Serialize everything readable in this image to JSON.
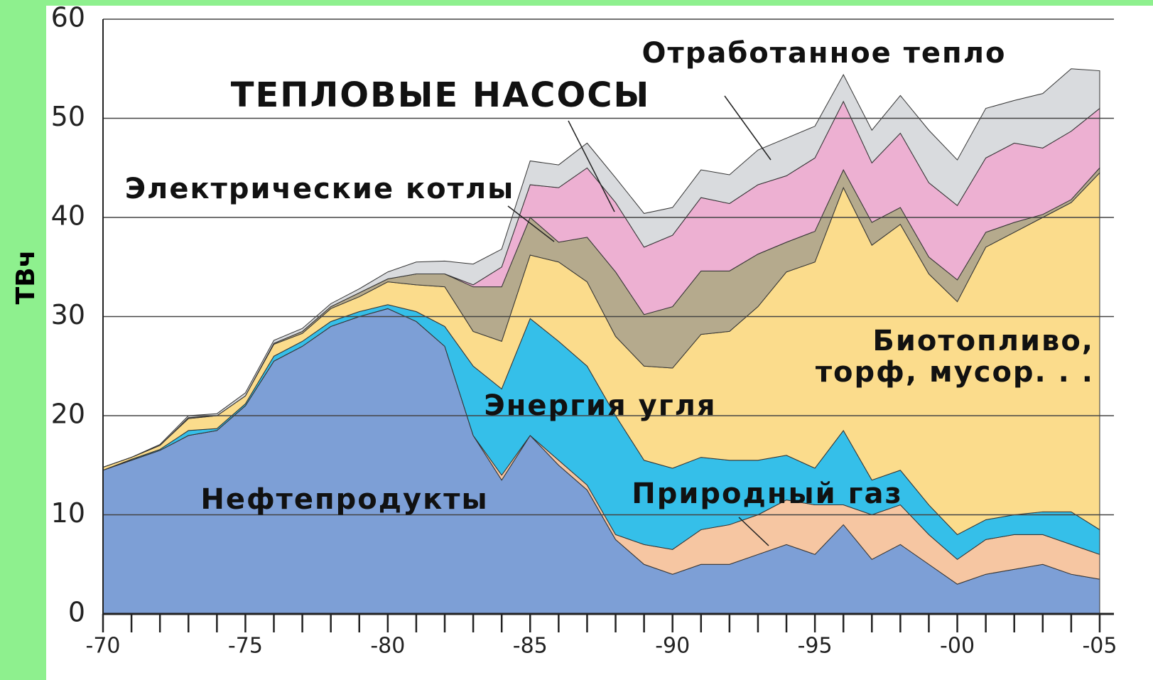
{
  "chart_data": {
    "type": "stacked_area",
    "y_label": "ТВч",
    "x": [
      1970,
      1971,
      1972,
      1973,
      1974,
      1975,
      1976,
      1977,
      1978,
      1979,
      1980,
      1981,
      1982,
      1983,
      1984,
      1985,
      1986,
      1987,
      1988,
      1989,
      1990,
      1991,
      1992,
      1993,
      1994,
      1995,
      1996,
      1997,
      1998,
      1999,
      2000,
      2001,
      2002,
      2003,
      2004,
      2005
    ],
    "xlim": [
      1970,
      2005.5
    ],
    "xticks": [
      {
        "value": 1970,
        "label": "-70"
      },
      {
        "value": 1975,
        "label": "-75"
      },
      {
        "value": 1980,
        "label": "-80"
      },
      {
        "value": 1985,
        "label": "-85"
      },
      {
        "value": 1990,
        "label": "-90"
      },
      {
        "value": 1995,
        "label": "-95"
      },
      {
        "value": 2000,
        "label": "-00"
      },
      {
        "value": 2005,
        "label": "-05"
      }
    ],
    "ylim": [
      0,
      60
    ],
    "yticks": [
      0,
      10,
      20,
      30,
      40,
      50,
      60
    ],
    "grid": true,
    "series": [
      {
        "name": "Нефтепродукты",
        "color": "#7d9fd6",
        "values": [
          14.5,
          15.5,
          16.5,
          18,
          18.5,
          21,
          25.5,
          27,
          29,
          30,
          30.8,
          29.5,
          27,
          18,
          13.5,
          18,
          15,
          12.5,
          7.5,
          5,
          4,
          5,
          5,
          6,
          7,
          6,
          9,
          5.5,
          7,
          5,
          3,
          4,
          4.5,
          5,
          4,
          3.5
        ]
      },
      {
        "name": "Природный газ",
        "color": "#f6c6a2",
        "values": [
          0,
          0,
          0,
          0,
          0,
          0,
          0,
          0,
          0,
          0,
          0,
          0,
          0,
          0,
          0.5,
          0,
          0.5,
          0.5,
          0.5,
          2,
          2.5,
          3.5,
          4,
          4,
          4.5,
          5,
          2,
          4.5,
          4,
          3,
          2.5,
          3.5,
          3.5,
          3,
          3,
          2.5
        ]
      },
      {
        "name": "Энергия угля",
        "color": "#35bfe9",
        "values": [
          0,
          0.1,
          0.1,
          0.5,
          0.2,
          0.2,
          0.5,
          0.5,
          0.5,
          0.5,
          0.4,
          1,
          2,
          7,
          8.7,
          11.8,
          12,
          12,
          12,
          8.5,
          8.2,
          7.3,
          6.5,
          5.5,
          4.5,
          3.7,
          7.5,
          3.5,
          3.5,
          3,
          2.5,
          2,
          2,
          2.3,
          3.3,
          2.5
        ]
      },
      {
        "name": "Биотопливо, торф, мусор. . .",
        "color": "#fbdc8c",
        "values": [
          0.3,
          0.2,
          0.4,
          1.2,
          1.3,
          0.8,
          1.2,
          0.8,
          1.3,
          1.5,
          2.3,
          2.7,
          4,
          3.5,
          4.8,
          6.4,
          8,
          8.5,
          8,
          9.5,
          10.1,
          12.4,
          13,
          15.5,
          18.5,
          20.8,
          24.5,
          23.7,
          24.8,
          23.3,
          23.5,
          27.5,
          28.5,
          29.7,
          31.2,
          36
        ]
      },
      {
        "name": "Электрические котлы",
        "color": "#b5aa8d",
        "values": [
          0,
          0,
          0,
          0.1,
          0,
          0,
          0.1,
          0.2,
          0.2,
          0.4,
          0.3,
          1.1,
          1.3,
          4.5,
          5.5,
          3.8,
          2,
          4.5,
          6.5,
          5.2,
          6.2,
          6.4,
          6.1,
          5.3,
          3,
          3.1,
          1.8,
          2.3,
          1.7,
          1.7,
          2.2,
          1.5,
          1,
          0.3,
          0.3,
          0.5
        ]
      },
      {
        "name": "ТЕПЛОВЫЕ НАСОСЫ",
        "color": "#edb0d2",
        "values": [
          0,
          0,
          0,
          0,
          0,
          0,
          0,
          0,
          0,
          0,
          0,
          0,
          0,
          0.2,
          2,
          3.3,
          5.5,
          7,
          7,
          6.8,
          7.2,
          7.4,
          6.8,
          7,
          6.7,
          7.4,
          6.9,
          6,
          7.5,
          7.5,
          7.5,
          7.5,
          8,
          6.7,
          6.9,
          6
        ]
      },
      {
        "name": "Отработанное тепло",
        "color": "#d9dbde",
        "values": [
          0,
          0,
          0.1,
          0.2,
          0.2,
          0.3,
          0.3,
          0.3,
          0.3,
          0.4,
          0.7,
          1.2,
          1.3,
          2.1,
          1.8,
          2.4,
          2.3,
          2.5,
          2.5,
          3.4,
          2.8,
          2.8,
          2.9,
          3.5,
          3.8,
          3.2,
          2.7,
          3.3,
          3.8,
          5.3,
          4.6,
          5,
          4.3,
          5.5,
          6.3,
          3.8
        ]
      }
    ]
  }
}
